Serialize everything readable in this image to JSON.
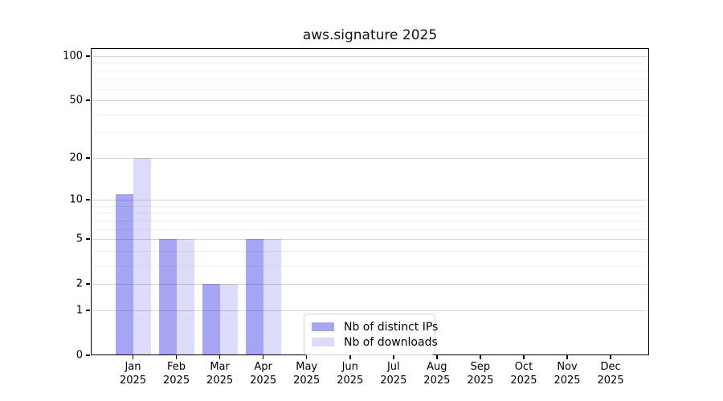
{
  "chart_data": {
    "type": "bar",
    "title": "aws.signature 2025",
    "year_label": "2025",
    "months": [
      "Jan",
      "Feb",
      "Mar",
      "Apr",
      "May",
      "Jun",
      "Jul",
      "Aug",
      "Sep",
      "Oct",
      "Nov",
      "Dec"
    ],
    "series": [
      {
        "name": "Nb of distinct IPs",
        "color": "#a5a5f4",
        "values": [
          11,
          5,
          2,
          5,
          0,
          0,
          0,
          0,
          0,
          0,
          0,
          0
        ]
      },
      {
        "name": "Nb of downloads",
        "color": "#dcdcfa",
        "values": [
          20,
          5,
          2,
          5,
          0,
          0,
          0,
          0,
          0,
          0,
          0,
          0
        ]
      }
    ],
    "yscale": "log1p",
    "ylim": [
      0,
      113
    ],
    "y_major_ticks": [
      0,
      1,
      2,
      5,
      10,
      20,
      50,
      100
    ],
    "y_minor_ticks": [
      3,
      4,
      6,
      7,
      8,
      9,
      30,
      40,
      60,
      70,
      80,
      90
    ],
    "grid": true,
    "legend_position": "lower-center",
    "colors": {
      "axis": "#000000",
      "background": "#ffffff"
    }
  }
}
